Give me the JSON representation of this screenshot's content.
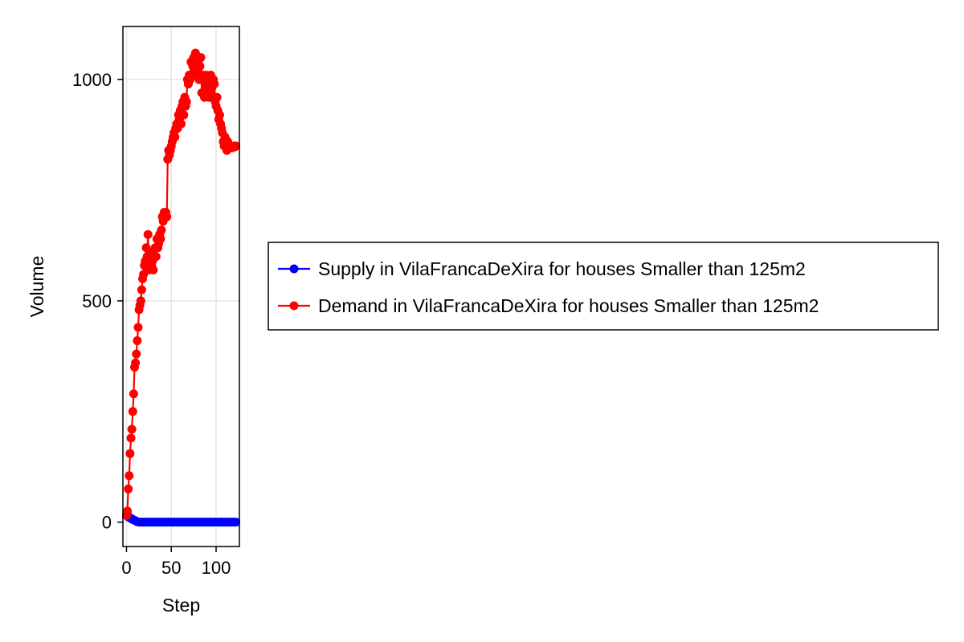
{
  "chart_data": {
    "type": "line",
    "title": "",
    "xlabel": "Step",
    "ylabel": "Volume",
    "xlim": [
      -4,
      126
    ],
    "ylim": [
      -55,
      1120
    ],
    "xticks": [
      0,
      50,
      100
    ],
    "yticks": [
      0,
      500,
      1000
    ],
    "grid": true,
    "legend_position": "right",
    "series": [
      {
        "name": "Supply in VilaFrancaDeXira for houses Smaller than 125m2",
        "color": "#0000ff",
        "marker": "circle",
        "x": [
          0,
          2,
          4,
          6,
          8,
          10,
          12,
          14,
          16,
          18,
          20,
          22,
          24,
          26,
          28,
          30,
          32,
          34,
          36,
          38,
          40,
          42,
          44,
          46,
          48,
          50,
          52,
          54,
          56,
          58,
          60,
          62,
          64,
          66,
          68,
          70,
          72,
          74,
          76,
          78,
          80,
          82,
          84,
          86,
          88,
          90,
          92,
          94,
          96,
          98,
          100,
          102,
          104,
          106,
          108,
          110,
          112,
          114,
          116,
          118,
          120,
          122
        ],
        "y": [
          15,
          12,
          10,
          7,
          5,
          3,
          1,
          0,
          0,
          0,
          0,
          0,
          0,
          0,
          0,
          0,
          0,
          0,
          0,
          0,
          0,
          0,
          0,
          0,
          0,
          0,
          0,
          0,
          0,
          0,
          0,
          0,
          0,
          0,
          0,
          0,
          0,
          0,
          0,
          0,
          0,
          0,
          0,
          0,
          0,
          0,
          0,
          0,
          0,
          0,
          0,
          0,
          0,
          0,
          0,
          0,
          0,
          0,
          0,
          0,
          0,
          0
        ]
      },
      {
        "name": "Demand in VilaFrancaDeXira for houses Smaller than 125m2",
        "color": "#ff0000",
        "marker": "circle",
        "x": [
          0,
          1,
          2,
          3,
          4,
          5,
          6,
          7,
          8,
          9,
          10,
          11,
          12,
          13,
          14,
          15,
          16,
          17,
          18,
          19,
          20,
          21,
          22,
          23,
          24,
          25,
          26,
          27,
          28,
          29,
          30,
          31,
          32,
          33,
          34,
          35,
          36,
          37,
          38,
          39,
          40,
          41,
          42,
          43,
          44,
          45,
          46,
          47,
          48,
          49,
          50,
          51,
          52,
          53,
          54,
          55,
          56,
          57,
          58,
          59,
          60,
          61,
          62,
          63,
          64,
          65,
          66,
          67,
          68,
          69,
          70,
          71,
          72,
          73,
          74,
          75,
          76,
          77,
          78,
          79,
          80,
          81,
          82,
          83,
          84,
          85,
          86,
          87,
          88,
          89,
          90,
          91,
          92,
          93,
          94,
          95,
          96,
          97,
          98,
          99,
          100,
          101,
          102,
          103,
          104,
          105,
          106,
          107,
          108,
          109,
          110,
          111,
          112,
          113,
          114,
          115,
          116,
          117,
          118,
          119,
          120,
          121,
          122
        ],
        "y": [
          15,
          25,
          75,
          105,
          155,
          190,
          210,
          250,
          290,
          350,
          360,
          380,
          410,
          440,
          480,
          490,
          500,
          525,
          550,
          560,
          580,
          590,
          620,
          600,
          650,
          570,
          590,
          610,
          580,
          590,
          570,
          600,
          620,
          600,
          640,
          620,
          630,
          650,
          640,
          660,
          690,
          680,
          700,
          690,
          700,
          690,
          820,
          840,
          830,
          840,
          850,
          860,
          870,
          880,
          870,
          890,
          900,
          890,
          920,
          910,
          930,
          900,
          940,
          950,
          920,
          960,
          940,
          950,
          1000,
          990,
          1010,
          1000,
          1040,
          1010,
          1030,
          1050,
          1020,
          1060,
          1040,
          1010,
          1040,
          1000,
          1030,
          1050,
          970,
          1010,
          1000,
          960,
          990,
          1010,
          980,
          1000,
          960,
          970,
          1010,
          980,
          960,
          1000,
          990,
          950,
          940,
          960,
          930,
          910,
          920,
          900,
          890,
          880,
          860,
          850,
          870,
          850,
          840,
          860,
          850,
          845,
          850,
          848,
          846,
          848,
          850,
          848,
          850
        ]
      }
    ]
  }
}
